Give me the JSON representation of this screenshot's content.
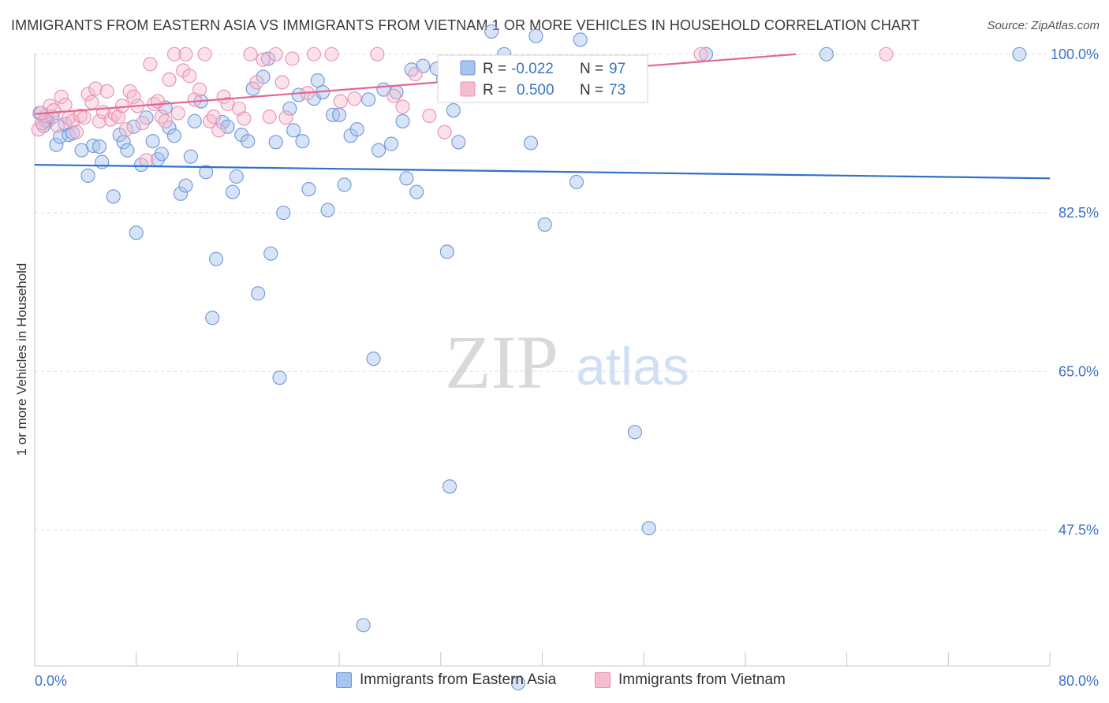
{
  "title": "IMMIGRANTS FROM EASTERN ASIA VS IMMIGRANTS FROM VIETNAM 1 OR MORE VEHICLES IN HOUSEHOLD CORRELATION CHART",
  "source": "Source: ZipAtlas.com",
  "watermark": {
    "zip": "ZIP",
    "atlas": "atlas"
  },
  "stats": {
    "r_label": "R =",
    "n_label": "N =",
    "series1": {
      "r": "-0.022",
      "n": "97"
    },
    "series2": {
      "r": "0.500",
      "n": "73"
    }
  },
  "colors": {
    "blue_fill": "#a7c4ee",
    "blue_stroke": "#6d96d8",
    "blue_line": "#2f6fce",
    "pink_fill": "#f6bcd0",
    "pink_stroke": "#e98fb0",
    "pink_line": "#e36693",
    "axis_tick": "#3c72c8"
  },
  "chart_data": {
    "type": "scatter",
    "title": "IMMIGRANTS FROM EASTERN ASIA VS IMMIGRANTS FROM VIETNAM 1 OR MORE VEHICLES IN HOUSEHOLD CORRELATION CHART",
    "xlabel": "",
    "ylabel": "1 or more Vehicles in Household",
    "xlim": [
      0,
      80
    ],
    "ylim": [
      32.5,
      102.5
    ],
    "x_tick_labels": [
      "0.0%",
      "80.0%"
    ],
    "y_ticks": [
      47.5,
      65.0,
      82.5,
      100.0
    ],
    "y_tick_labels": [
      "47.5%",
      "65.0%",
      "82.5%",
      "100.0%"
    ],
    "grid": true,
    "legend_position": "bottom",
    "series": [
      {
        "name": "Immigrants from Eastern Asia",
        "color": "#a7c4ee",
        "r": -0.022,
        "n": 97,
        "trend": [
          [
            0,
            87.8
          ],
          [
            80,
            86.3
          ]
        ],
        "points": [
          [
            0.4,
            93.5
          ],
          [
            0.8,
            92.7
          ],
          [
            1.0,
            92.6
          ],
          [
            1.4,
            93.1
          ],
          [
            1.7,
            90.0
          ],
          [
            2.0,
            90.9
          ],
          [
            2.4,
            92.3
          ],
          [
            2.7,
            91.1
          ],
          [
            3.0,
            91.3
          ],
          [
            3.7,
            89.4
          ],
          [
            4.2,
            86.6
          ],
          [
            4.6,
            89.9
          ],
          [
            5.1,
            89.8
          ],
          [
            5.3,
            88.1
          ],
          [
            6.2,
            84.3
          ],
          [
            6.7,
            91.1
          ],
          [
            7.0,
            90.3
          ],
          [
            7.3,
            89.4
          ],
          [
            7.8,
            92.0
          ],
          [
            8.0,
            80.3
          ],
          [
            8.4,
            87.8
          ],
          [
            8.8,
            93.0
          ],
          [
            9.3,
            90.4
          ],
          [
            9.7,
            88.4
          ],
          [
            10.0,
            89.0
          ],
          [
            10.3,
            94.1
          ],
          [
            10.6,
            91.9
          ],
          [
            11.0,
            91.0
          ],
          [
            11.5,
            84.6
          ],
          [
            11.9,
            85.5
          ],
          [
            12.3,
            88.7
          ],
          [
            12.6,
            92.6
          ],
          [
            13.1,
            94.8
          ],
          [
            13.5,
            87.0
          ],
          [
            14.0,
            70.9
          ],
          [
            14.3,
            77.4
          ],
          [
            14.8,
            92.5
          ],
          [
            15.2,
            92.0
          ],
          [
            15.6,
            84.8
          ],
          [
            15.9,
            86.5
          ],
          [
            16.3,
            91.1
          ],
          [
            16.8,
            90.4
          ],
          [
            17.2,
            96.2
          ],
          [
            17.6,
            73.6
          ],
          [
            18.0,
            97.5
          ],
          [
            18.4,
            99.5
          ],
          [
            18.6,
            78.0
          ],
          [
            19.0,
            90.3
          ],
          [
            19.3,
            64.3
          ],
          [
            19.6,
            82.5
          ],
          [
            20.1,
            94.0
          ],
          [
            20.4,
            91.6
          ],
          [
            20.8,
            95.5
          ],
          [
            21.1,
            90.4
          ],
          [
            21.6,
            85.1
          ],
          [
            22.0,
            95.1
          ],
          [
            22.3,
            97.1
          ],
          [
            22.7,
            95.8
          ],
          [
            23.1,
            82.8
          ],
          [
            23.5,
            93.3
          ],
          [
            24.0,
            93.3
          ],
          [
            24.4,
            85.6
          ],
          [
            24.9,
            91.0
          ],
          [
            25.4,
            91.7
          ],
          [
            25.9,
            37.0
          ],
          [
            26.3,
            95.0
          ],
          [
            26.7,
            66.4
          ],
          [
            27.1,
            89.4
          ],
          [
            27.5,
            96.1
          ],
          [
            28.1,
            90.1
          ],
          [
            28.5,
            95.8
          ],
          [
            29.0,
            92.6
          ],
          [
            29.3,
            86.3
          ],
          [
            29.7,
            98.3
          ],
          [
            30.1,
            84.8
          ],
          [
            30.6,
            98.7
          ],
          [
            31.7,
            98.4
          ],
          [
            32.2,
            97.3
          ],
          [
            32.5,
            78.2
          ],
          [
            32.7,
            52.3
          ],
          [
            33.0,
            93.8
          ],
          [
            33.4,
            90.3
          ],
          [
            35.0,
            97.5
          ],
          [
            36.0,
            102.5
          ],
          [
            37.0,
            100.0
          ],
          [
            38.1,
            30.6
          ],
          [
            39.1,
            90.2
          ],
          [
            39.5,
            102.0
          ],
          [
            40.2,
            81.2
          ],
          [
            42.7,
            85.9
          ],
          [
            43.0,
            101.6
          ],
          [
            47.3,
            58.3
          ],
          [
            48.4,
            47.7
          ],
          [
            52.9,
            100.0
          ],
          [
            62.4,
            100.0
          ],
          [
            77.6,
            100.0
          ],
          [
            0.7,
            92.1
          ]
        ]
      },
      {
        "name": "Immigrants from Vietnam",
        "color": "#f6bcd0",
        "r": 0.5,
        "n": 73,
        "trend": [
          [
            0,
            93.4
          ],
          [
            60,
            100.0
          ]
        ],
        "points": [
          [
            0.3,
            91.7
          ],
          [
            0.6,
            92.4
          ],
          [
            0.9,
            93.2
          ],
          [
            1.2,
            94.3
          ],
          [
            1.5,
            93.8
          ],
          [
            1.8,
            92.1
          ],
          [
            2.1,
            95.3
          ],
          [
            2.4,
            94.4
          ],
          [
            2.7,
            93.0
          ],
          [
            3.0,
            92.6
          ],
          [
            3.3,
            91.4
          ],
          [
            3.6,
            93.2
          ],
          [
            3.9,
            93.0
          ],
          [
            4.2,
            95.6
          ],
          [
            4.5,
            94.7
          ],
          [
            4.8,
            96.2
          ],
          [
            5.1,
            92.6
          ],
          [
            5.4,
            93.6
          ],
          [
            5.7,
            95.9
          ],
          [
            6.0,
            92.8
          ],
          [
            6.3,
            93.4
          ],
          [
            6.6,
            93.1
          ],
          [
            6.9,
            94.3
          ],
          [
            7.2,
            91.7
          ],
          [
            7.5,
            95.9
          ],
          [
            7.8,
            95.3
          ],
          [
            8.1,
            94.3
          ],
          [
            8.5,
            92.4
          ],
          [
            8.8,
            88.3
          ],
          [
            9.1,
            98.9
          ],
          [
            9.4,
            94.5
          ],
          [
            9.7,
            94.8
          ],
          [
            10.0,
            93.1
          ],
          [
            10.3,
            92.6
          ],
          [
            10.6,
            97.2
          ],
          [
            11.0,
            100.0
          ],
          [
            11.3,
            93.5
          ],
          [
            11.7,
            98.2
          ],
          [
            11.9,
            100.0
          ],
          [
            12.2,
            97.6
          ],
          [
            12.6,
            95.0
          ],
          [
            13.0,
            96.1
          ],
          [
            13.4,
            100.0
          ],
          [
            13.8,
            92.6
          ],
          [
            14.1,
            93.1
          ],
          [
            14.5,
            91.6
          ],
          [
            14.9,
            95.3
          ],
          [
            15.2,
            94.5
          ],
          [
            16.1,
            94.0
          ],
          [
            16.5,
            92.9
          ],
          [
            17.0,
            100.0
          ],
          [
            17.5,
            96.9
          ],
          [
            18.0,
            99.4
          ],
          [
            18.5,
            93.1
          ],
          [
            19.0,
            100.0
          ],
          [
            19.5,
            96.9
          ],
          [
            19.8,
            93.0
          ],
          [
            20.3,
            99.5
          ],
          [
            21.5,
            95.7
          ],
          [
            22.0,
            100.0
          ],
          [
            23.4,
            100.0
          ],
          [
            24.1,
            94.8
          ],
          [
            25.2,
            95.1
          ],
          [
            27.0,
            100.0
          ],
          [
            28.3,
            95.4
          ],
          [
            29.0,
            94.2
          ],
          [
            30.0,
            97.8
          ],
          [
            31.1,
            93.2
          ],
          [
            32.3,
            91.4
          ],
          [
            33.4,
            96.4
          ],
          [
            0.5,
            93.5
          ],
          [
            52.5,
            100.0
          ],
          [
            67.1,
            100.0
          ]
        ]
      }
    ]
  },
  "legend": {
    "series1": "Immigrants from Eastern Asia",
    "series2": "Immigrants from Vietnam"
  }
}
